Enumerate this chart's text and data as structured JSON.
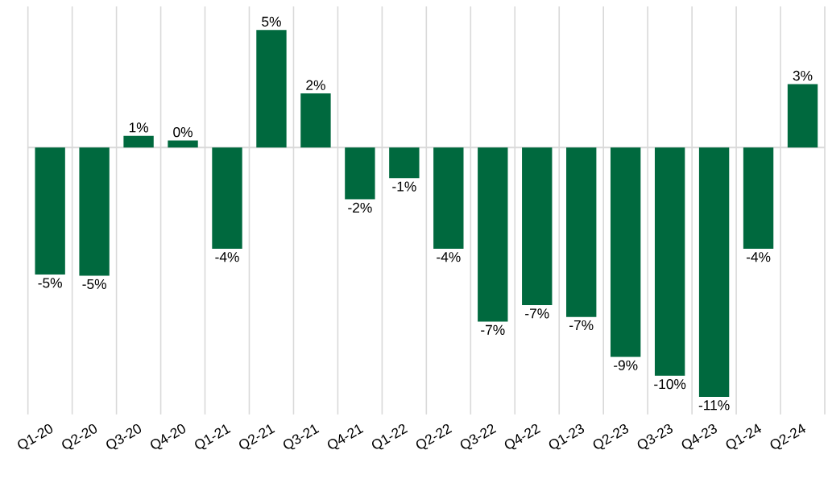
{
  "chart_data": {
    "type": "bar",
    "categories": [
      "Q1-20",
      "Q2-20",
      "Q3-20",
      "Q4-20",
      "Q1-21",
      "Q2-21",
      "Q3-21",
      "Q4-21",
      "Q1-22",
      "Q2-22",
      "Q3-22",
      "Q4-22",
      "Q1-23",
      "Q2-23",
      "Q3-23",
      "Q4-23",
      "Q1-24",
      "Q2-24"
    ],
    "values": [
      -5.4,
      -5.45,
      0.5,
      0.3,
      -4.3,
      5.0,
      2.3,
      -2.2,
      -1.3,
      -4.3,
      -7.4,
      -6.7,
      -7.2,
      -8.9,
      -9.7,
      -10.6,
      -4.3,
      2.7
    ],
    "value_labels": [
      "-5%",
      "-5%",
      "1%",
      "0%",
      "-4%",
      "5%",
      "2%",
      "-2%",
      "-1%",
      "-4%",
      "-7%",
      "-7%",
      "-7%",
      "-9%",
      "-10%",
      "-11%",
      "-4%",
      "3%"
    ],
    "color": "#00693e",
    "grid": "x"
  }
}
